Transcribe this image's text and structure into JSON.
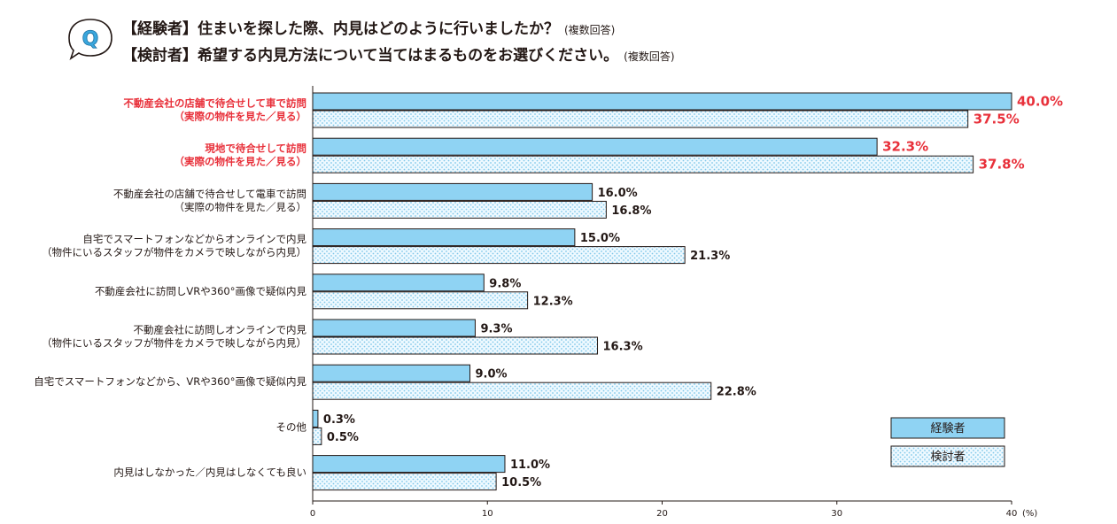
{
  "title": {
    "line1": "【経験者】住まいを探した際、内見はどのように行いましたか？",
    "line1_note": "(複数回答)",
    "line2": "【検討者】希望する内見方法について当てはまるものをお選びください。",
    "line2_note": "(複数回答)",
    "q_badge": "Q"
  },
  "colors": {
    "series1_fill": "#8fd3f3",
    "series2_fill": "#eef9ff",
    "series2_dot": "#7fc7ea",
    "highlight": "#e8303a",
    "bar_stroke": "#231815"
  },
  "chart_data": {
    "type": "bar",
    "orientation": "horizontal",
    "unit_label": "(%)",
    "xlim": [
      0,
      40
    ],
    "xticks": [
      "0",
      "10",
      "20",
      "30",
      "40"
    ],
    "legend": [
      "経験者",
      "検討者"
    ],
    "legend_position": "bottom-right",
    "categories": [
      {
        "lines": [
          "不動産会社の店舗で待合せして車で訪問",
          "（実際の物件を見た／見る）"
        ],
        "highlight": true
      },
      {
        "lines": [
          "現地で待合せして訪問",
          "（実際の物件を見た／見る）"
        ],
        "highlight": true
      },
      {
        "lines": [
          "不動産会社の店舗で待合せして電車で訪問",
          "（実際の物件を見た／見る）"
        ],
        "highlight": false
      },
      {
        "lines": [
          "自宅でスマートフォンなどからオンラインで内見",
          "（物件にいるスタッフが物件をカメラで映しながら内見）"
        ],
        "highlight": false
      },
      {
        "lines": [
          "不動産会社に訪問しVRや360°画像で疑似内見"
        ],
        "highlight": false
      },
      {
        "lines": [
          "不動産会社に訪問しオンラインで内見",
          "（物件にいるスタッフが物件をカメラで映しながら内見）"
        ],
        "highlight": false
      },
      {
        "lines": [
          "自宅でスマートフォンなどから、VRや360°画像で疑似内見"
        ],
        "highlight": false
      },
      {
        "lines": [
          "その他"
        ],
        "highlight": false
      },
      {
        "lines": [
          "内見はしなかった／内見はしなくても良い"
        ],
        "highlight": false
      }
    ],
    "series": [
      {
        "name": "経験者",
        "values": [
          40.0,
          32.3,
          16.0,
          15.0,
          9.8,
          9.3,
          9.0,
          0.3,
          11.0
        ],
        "labels": [
          "40.0%",
          "32.3%",
          "16.0%",
          "15.0%",
          "9.8%",
          "9.3%",
          "9.0%",
          "0.3%",
          "11.0%"
        ]
      },
      {
        "name": "検討者",
        "values": [
          37.5,
          37.8,
          16.8,
          21.3,
          12.3,
          16.3,
          22.8,
          0.5,
          10.5
        ],
        "labels": [
          "37.5%",
          "37.8%",
          "16.8%",
          "21.3%",
          "12.3%",
          "16.3%",
          "22.8%",
          "0.5%",
          "10.5%"
        ]
      }
    ]
  }
}
